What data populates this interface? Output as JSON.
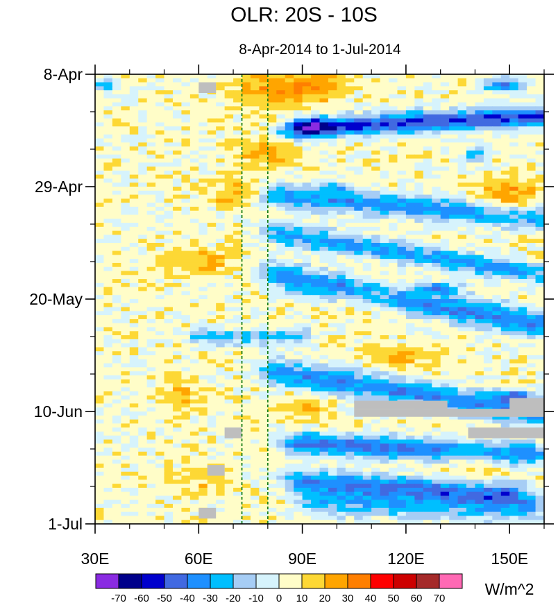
{
  "chart_data": {
    "type": "heatmap",
    "title": "OLR: 20S - 10S",
    "subtitle": "8-Apr-2014 to 1-Jul-2014",
    "x_axis": {
      "range": [
        30,
        160
      ],
      "ticks": [
        30,
        60,
        90,
        120,
        150
      ],
      "tick_labels": [
        "30E",
        "60E",
        "90E",
        "120E",
        "150E"
      ],
      "minor_step": 10
    },
    "y_axis": {
      "range_days": [
        0,
        84
      ],
      "ticks": [
        0,
        21,
        42,
        63,
        84
      ],
      "tick_labels": [
        "8-Apr",
        "29-Apr",
        "20-May",
        "10-Jun",
        "1-Jul"
      ],
      "minor_step_days": 7
    },
    "reference_lines_lon": [
      72.5,
      80
    ],
    "colorbar": {
      "units": "W/m^2",
      "levels": [
        "-70",
        "-60",
        "-50",
        "-40",
        "-30",
        "-20",
        "-10",
        "0",
        "10",
        "20",
        "30",
        "40",
        "50",
        "60",
        "70"
      ],
      "colors": [
        "#8a2be2",
        "#00008b",
        "#0000cd",
        "#4169e1",
        "#1e90ff",
        "#00bfff",
        "#a6cdf5",
        "#d6f3fc",
        "#fffdc8",
        "#fdd835",
        "#ffa500",
        "#ff7f00",
        "#ff0000",
        "#cd0000",
        "#a52a2a",
        "#ff69b4"
      ]
    },
    "missing_color": "#bebebe",
    "missing_regions": [
      {
        "lon": [
          60,
          65
        ],
        "day": [
          1.5,
          3.5
        ]
      },
      {
        "lon": [
          105,
          132
        ],
        "day": [
          61,
          62.5
        ]
      },
      {
        "lon": [
          105,
          160
        ],
        "day": [
          62.5,
          64
        ]
      },
      {
        "lon": [
          150,
          160
        ],
        "day": [
          60.5,
          64
        ]
      },
      {
        "lon": [
          138,
          160
        ],
        "day": [
          66,
          68
        ]
      },
      {
        "lon": [
          67.5,
          72.5
        ],
        "day": [
          66,
          68
        ]
      },
      {
        "lon": [
          62.5,
          67.5
        ],
        "day": [
          73,
          75
        ]
      },
      {
        "lon": [
          60,
          65
        ],
        "day": [
          81,
          83
        ]
      }
    ],
    "anomaly_field_description": "Daily OLR anomalies; negative (blue) streaks propagate eastward from ~85E to 160E; positive (orange) anomalies near 75-100E early April and 140-160E late April."
  }
}
